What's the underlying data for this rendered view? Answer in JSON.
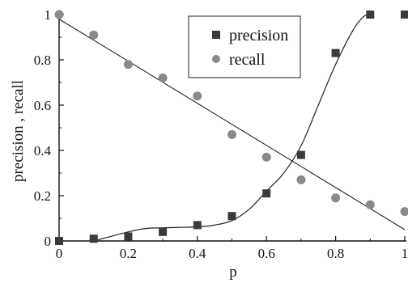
{
  "chart_data": {
    "type": "scatter",
    "xlabel": "p",
    "ylabel": "precision , recall",
    "xlim": [
      0,
      1
    ],
    "ylim": [
      0,
      1
    ],
    "x_ticks": [
      "0",
      "0.2",
      "0.4",
      "0.6",
      "0.8",
      "1"
    ],
    "y_ticks": [
      "0",
      "0.2",
      "0.4",
      "0.6",
      "0.8",
      "1"
    ],
    "grid": false,
    "legend_position": "top-center",
    "series": [
      {
        "name": "precision",
        "marker": "square",
        "color": "#3a3a3a",
        "points": [
          {
            "x": 0.0,
            "y": 0.0
          },
          {
            "x": 0.1,
            "y": 0.01
          },
          {
            "x": 0.2,
            "y": 0.02
          },
          {
            "x": 0.3,
            "y": 0.04
          },
          {
            "x": 0.4,
            "y": 0.07
          },
          {
            "x": 0.5,
            "y": 0.11
          },
          {
            "x": 0.6,
            "y": 0.21
          },
          {
            "x": 0.7,
            "y": 0.38
          },
          {
            "x": 0.8,
            "y": 0.83
          },
          {
            "x": 0.9,
            "y": 1.0
          },
          {
            "x": 1.0,
            "y": 1.0
          }
        ],
        "fit_curve": [
          {
            "x": 0.1,
            "y": 0.0
          },
          {
            "x": 0.15,
            "y": 0.02
          },
          {
            "x": 0.2,
            "y": 0.04
          },
          {
            "x": 0.25,
            "y": 0.055
          },
          {
            "x": 0.3,
            "y": 0.058
          },
          {
            "x": 0.35,
            "y": 0.06
          },
          {
            "x": 0.4,
            "y": 0.062
          },
          {
            "x": 0.45,
            "y": 0.07
          },
          {
            "x": 0.5,
            "y": 0.09
          },
          {
            "x": 0.55,
            "y": 0.14
          },
          {
            "x": 0.6,
            "y": 0.22
          },
          {
            "x": 0.65,
            "y": 0.3
          },
          {
            "x": 0.7,
            "y": 0.42
          },
          {
            "x": 0.75,
            "y": 0.6
          },
          {
            "x": 0.8,
            "y": 0.78
          },
          {
            "x": 0.85,
            "y": 0.93
          },
          {
            "x": 0.88,
            "y": 0.99
          },
          {
            "x": 0.9,
            "y": 1.0
          }
        ]
      },
      {
        "name": "recall",
        "marker": "circle",
        "color": "#8a8a8a",
        "points": [
          {
            "x": 0.0,
            "y": 1.0
          },
          {
            "x": 0.1,
            "y": 0.91
          },
          {
            "x": 0.2,
            "y": 0.78
          },
          {
            "x": 0.3,
            "y": 0.72
          },
          {
            "x": 0.4,
            "y": 0.64
          },
          {
            "x": 0.5,
            "y": 0.47
          },
          {
            "x": 0.6,
            "y": 0.37
          },
          {
            "x": 0.7,
            "y": 0.27
          },
          {
            "x": 0.8,
            "y": 0.19
          },
          {
            "x": 0.9,
            "y": 0.16
          },
          {
            "x": 1.0,
            "y": 0.13
          }
        ],
        "fit_line": [
          {
            "x": 0.0,
            "y": 0.98
          },
          {
            "x": 1.0,
            "y": 0.05
          }
        ]
      }
    ]
  }
}
